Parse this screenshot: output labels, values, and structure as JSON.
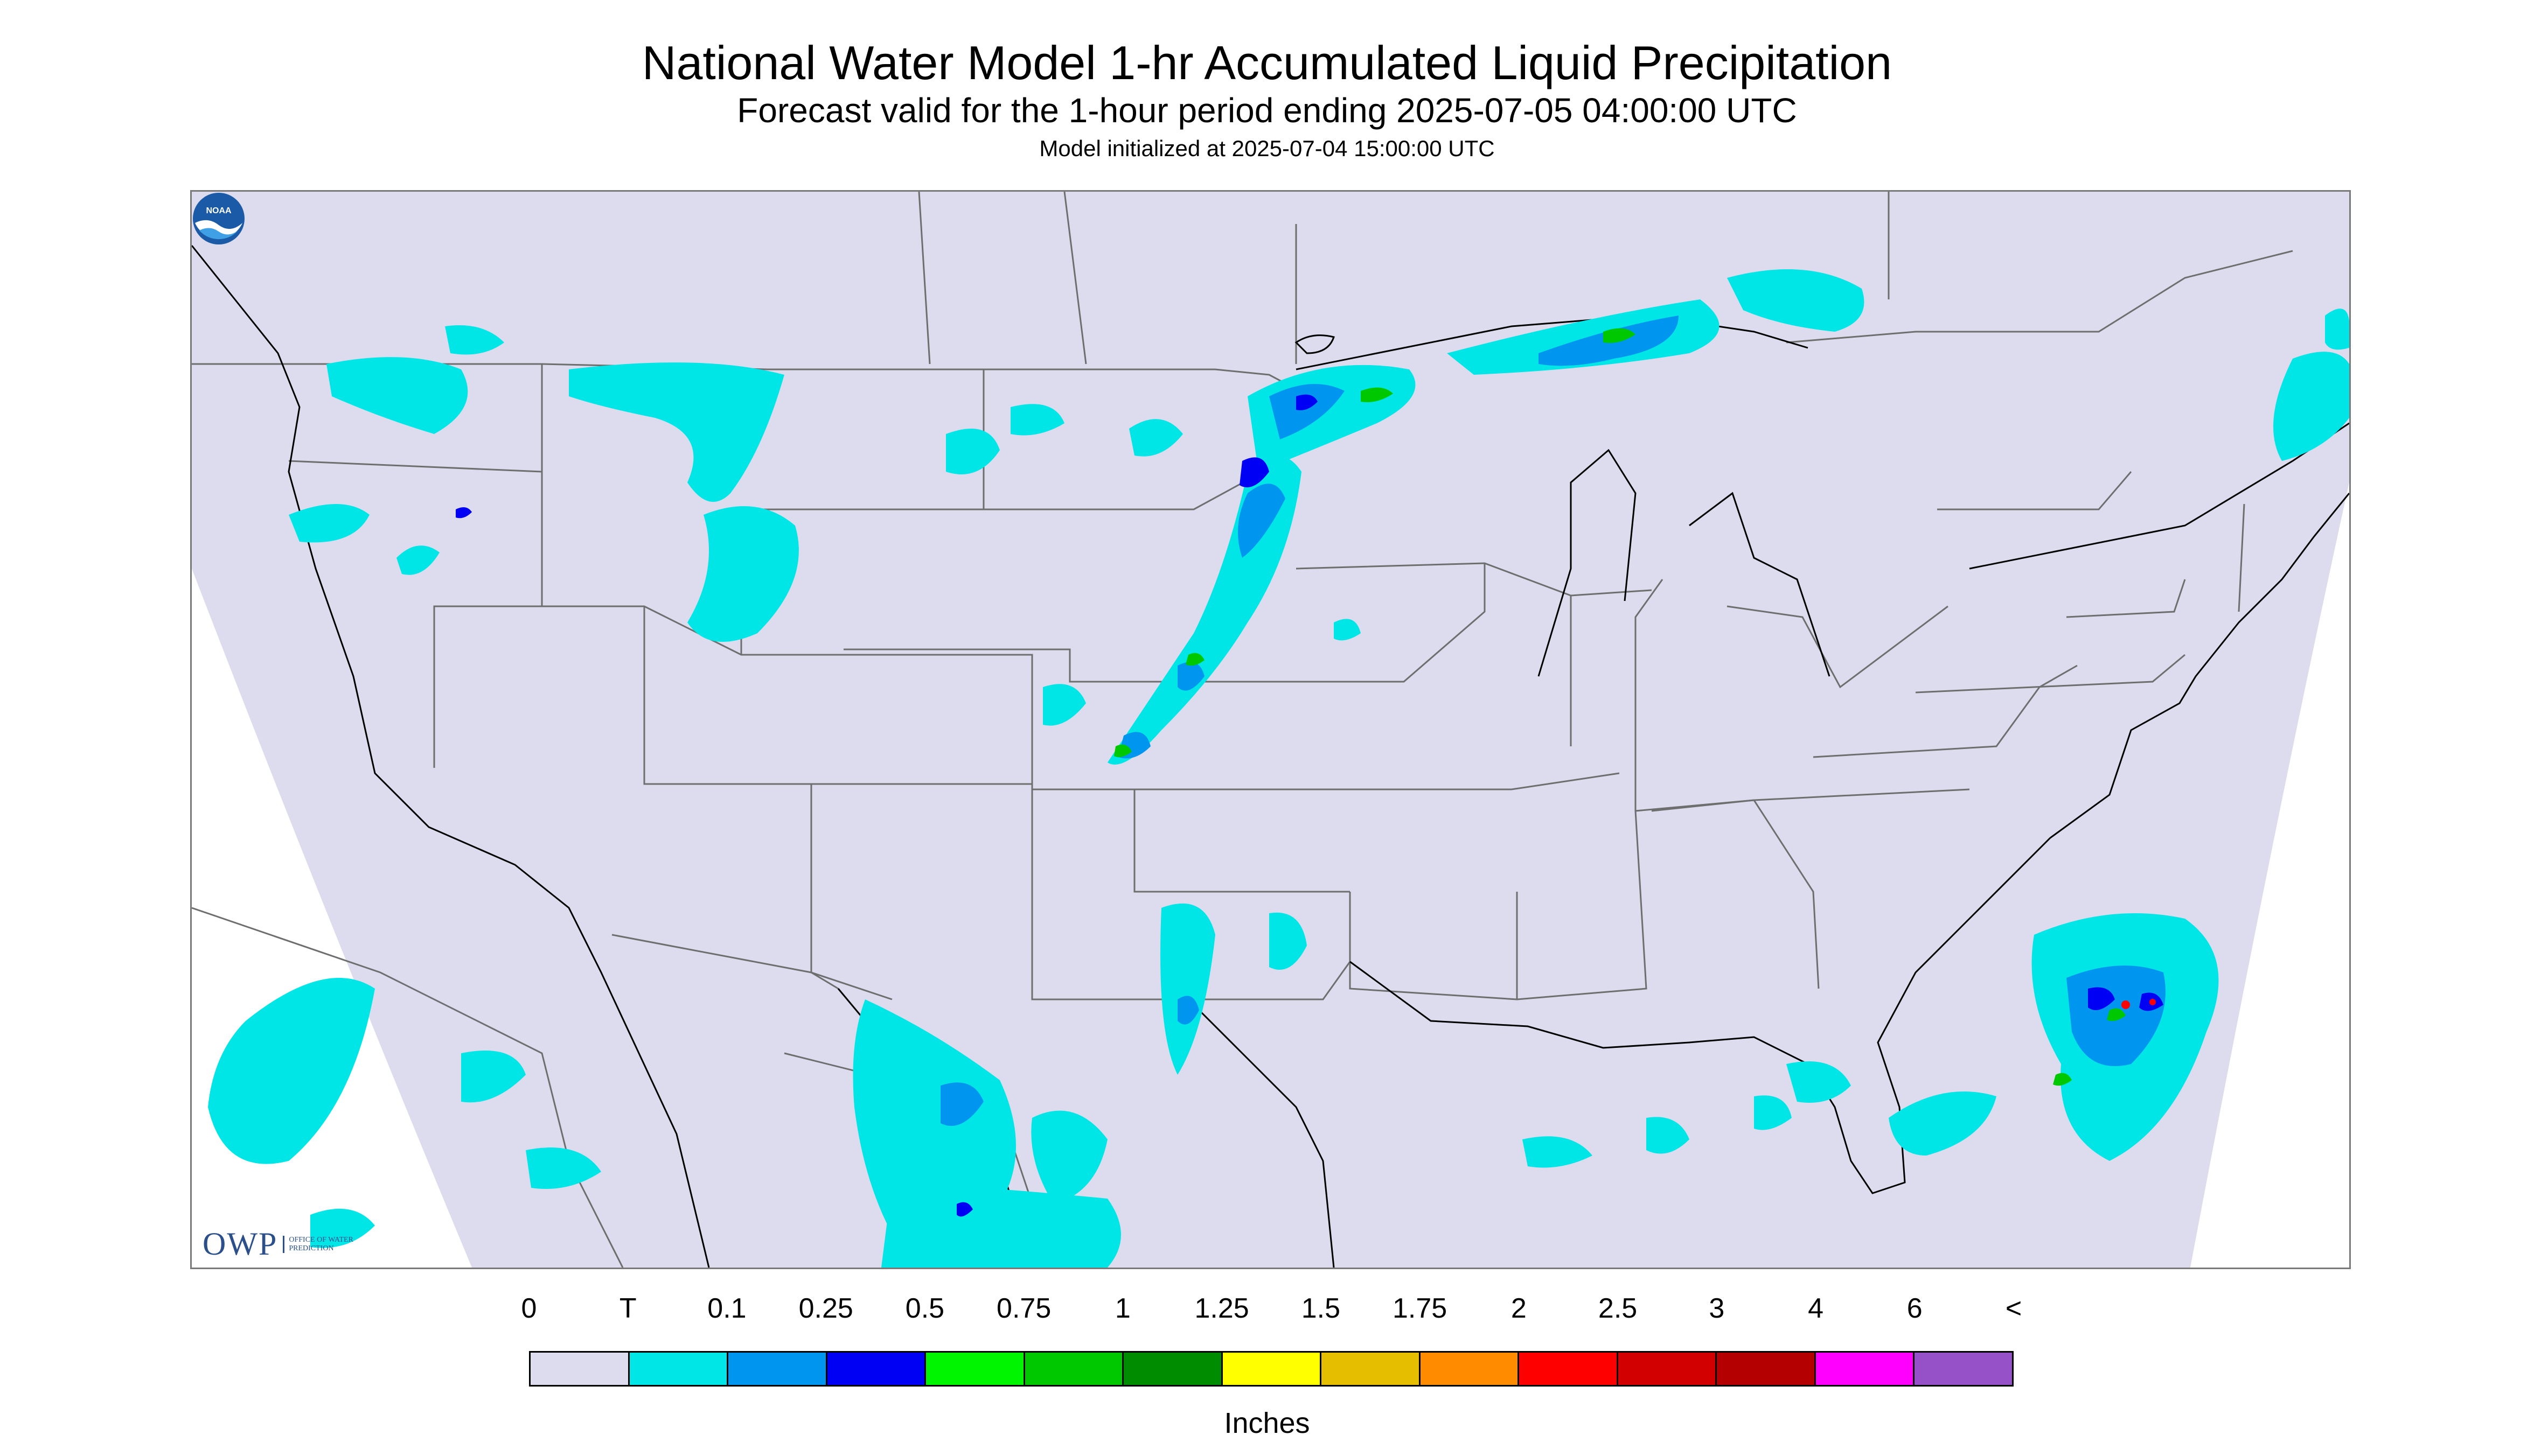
{
  "title": "National Water Model 1-hr Accumulated Liquid Precipitation",
  "subtitle": "Forecast valid for the 1-hour period ending 2025-07-05 04:00:00 UTC",
  "init_text": "Model initialized at 2025-07-04 15:00:00 UTC",
  "logos": {
    "owp_mark": "OWP",
    "owp_text": "OFFICE OF WATER PREDICTION",
    "noaa_text": "NOAA"
  },
  "legend": {
    "labels": [
      "0",
      "T",
      "0.1",
      "0.25",
      "0.5",
      "0.75",
      "1",
      "1.25",
      "1.5",
      "1.75",
      "2",
      "2.5",
      "3",
      "4",
      "6",
      "<"
    ],
    "colors": [
      "#dcdcee",
      "#00e6e6",
      "#0096f0",
      "#0000f5",
      "#00f500",
      "#00c800",
      "#008c00",
      "#ffff00",
      "#e6be00",
      "#ff8c00",
      "#ff0000",
      "#d20000",
      "#b40000",
      "#ff00ff",
      "#9650c8"
    ],
    "units": "Inches"
  },
  "colors": {
    "map_background": "#dcdcee",
    "outside_domain": "#ffffff",
    "border_lines": "#6e6e6e",
    "coastline": "#000000"
  }
}
